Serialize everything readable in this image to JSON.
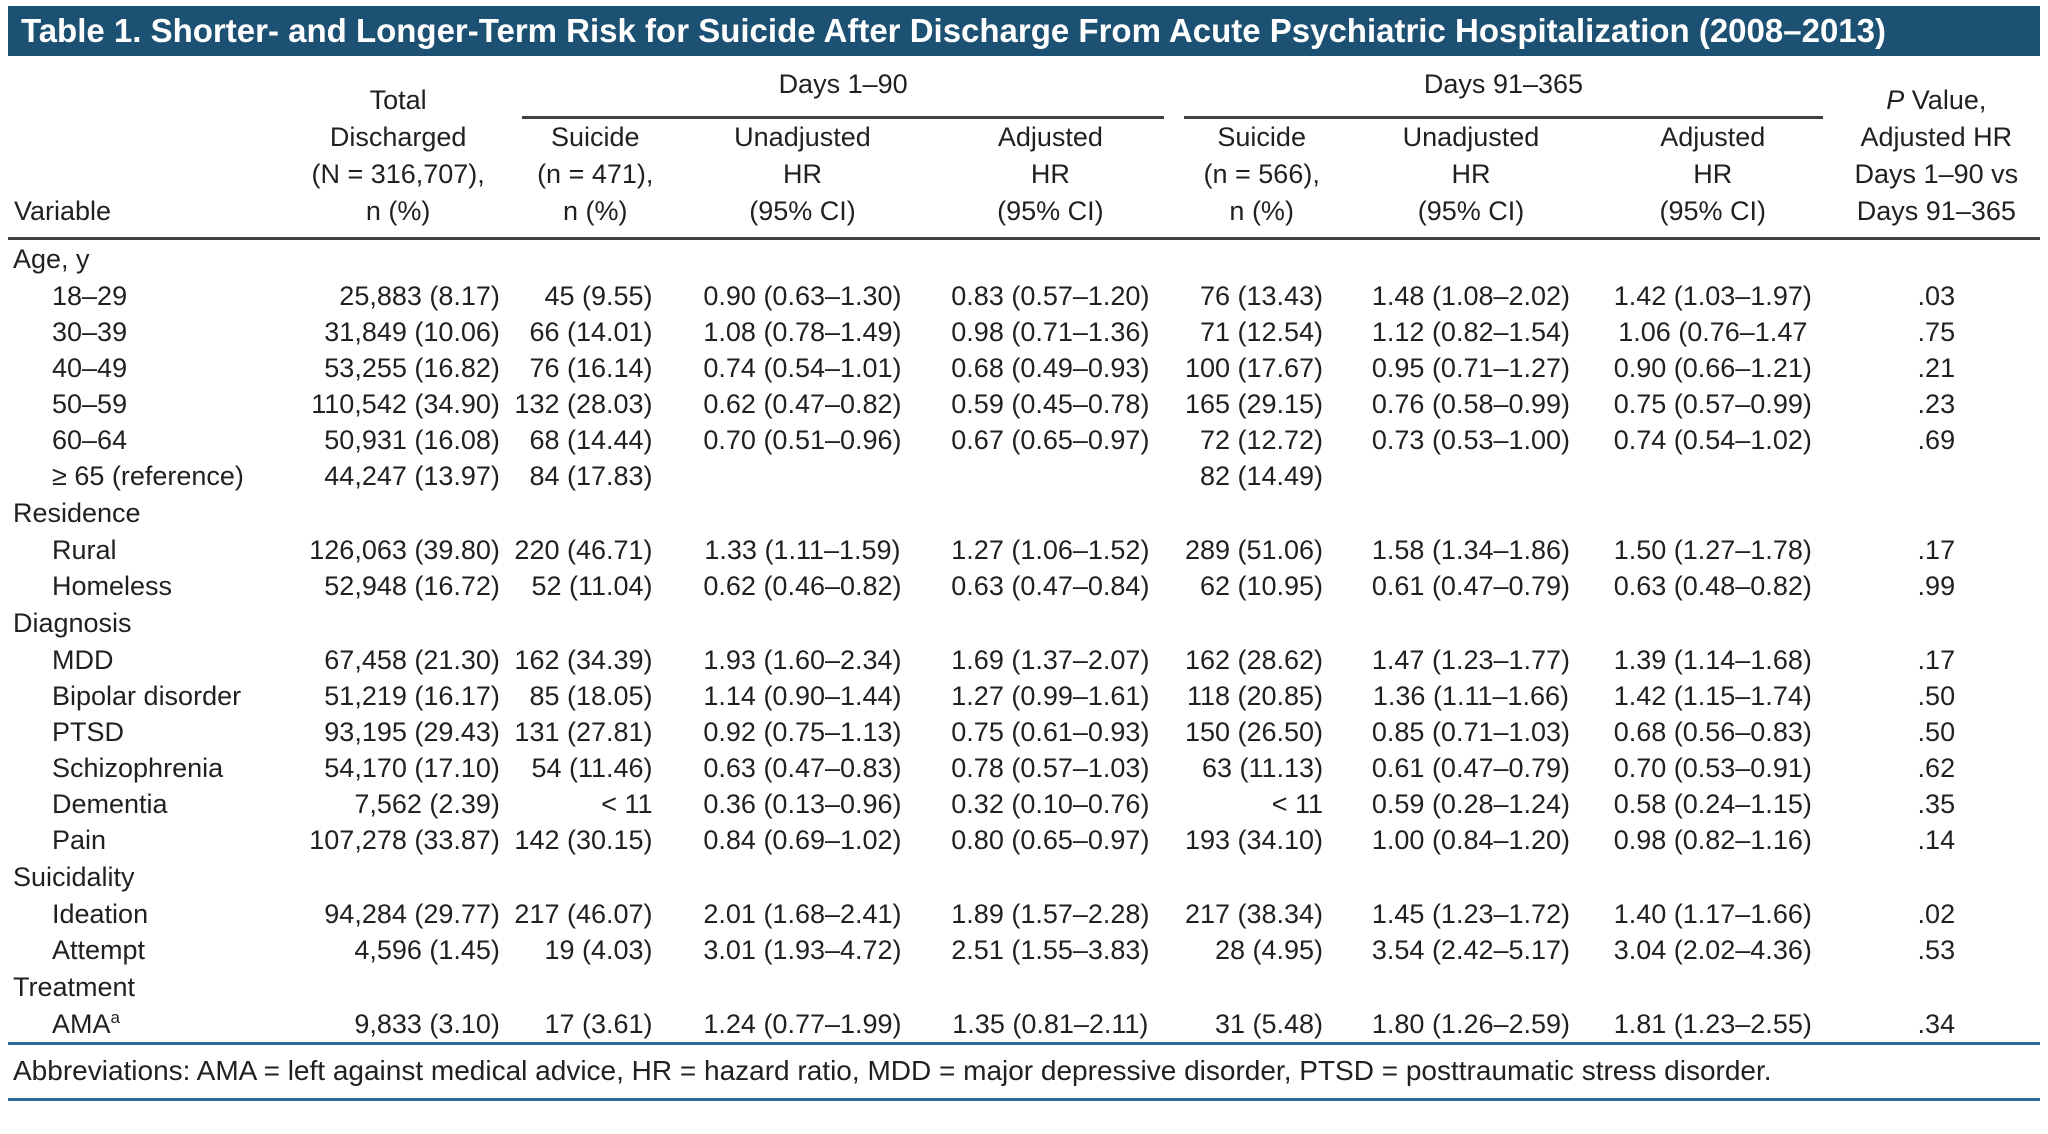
{
  "colors": {
    "title_bar": "#1c5174",
    "rule_blue": "#2b6a9b",
    "rule_dark": "#414042",
    "text": "#231f20"
  },
  "title": "Table 1. Shorter- and Longer-Term Risk for Suicide After Discharge From Acute Psychiatric Hospitalization (2008–2013)",
  "table": {
    "header": {
      "variable_label": "Variable",
      "total_lines": [
        "Total",
        "Discharged",
        "(N = 316,707),",
        "n (%)"
      ],
      "days_1_90": "Days 1–90",
      "days_91_365": "Days 91–365",
      "suicide_90_lines": [
        "Suicide",
        "(n = 471),",
        "n (%)"
      ],
      "suicide_365_lines": [
        "Suicide",
        "(n = 566),",
        "n (%)"
      ],
      "unadjusted_lines": [
        "Unadjusted",
        "HR",
        "(95% CI)"
      ],
      "adjusted_lines": [
        "Adjusted",
        "HR",
        "(95% CI)"
      ],
      "p_value": {
        "italic": "P",
        "first_rest": " Value,",
        "rest_lines": [
          "Adjusted HR",
          "Days 1–90 vs",
          "Days 91–365"
        ]
      }
    },
    "sections": [
      {
        "label": "Age, y",
        "rows": [
          {
            "label": "18–29",
            "total": "25,883 (8.17)",
            "s90": "45 (9.55)",
            "uhr90": "0.90 (0.63–1.30)",
            "ahr90": "0.83 (0.57–1.20)",
            "s365": "76 (13.43)",
            "uhr365": "1.48 (1.08–2.02)",
            "ahr365": "1.42 (1.03–1.97)",
            "p": ".03"
          },
          {
            "label": "30–39",
            "total": "31,849 (10.06)",
            "s90": "66 (14.01)",
            "uhr90": "1.08 (0.78–1.49)",
            "ahr90": "0.98 (0.71–1.36)",
            "s365": "71 (12.54)",
            "uhr365": "1.12 (0.82–1.54)",
            "ahr365": "1.06 (0.76–1.47",
            "p": ".75"
          },
          {
            "label": "40–49",
            "total": "53,255 (16.82)",
            "s90": "76 (16.14)",
            "uhr90": "0.74 (0.54–1.01)",
            "ahr90": "0.68 (0.49–0.93)",
            "s365": "100 (17.67)",
            "uhr365": "0.95 (0.71–1.27)",
            "ahr365": "0.90 (0.66–1.21)",
            "p": ".21"
          },
          {
            "label": "50–59",
            "total": "110,542 (34.90)",
            "s90": "132 (28.03)",
            "uhr90": "0.62 (0.47–0.82)",
            "ahr90": "0.59 (0.45–0.78)",
            "s365": "165 (29.15)",
            "uhr365": "0.76 (0.58–0.99)",
            "ahr365": "0.75 (0.57–0.99)",
            "p": ".23"
          },
          {
            "label": "60–64",
            "total": "50,931 (16.08)",
            "s90": "68 (14.44)",
            "uhr90": "0.70 (0.51–0.96)",
            "ahr90": "0.67 (0.65–0.97)",
            "s365": "72 (12.72)",
            "uhr365": "0.73 (0.53–1.00)",
            "ahr365": "0.74 (0.54–1.02)",
            "p": ".69"
          },
          {
            "label": "≥ 65 (reference)",
            "total": "44,247 (13.97)",
            "s90": "84 (17.83)",
            "uhr90": "",
            "ahr90": "",
            "s365": "82 (14.49)",
            "uhr365": "",
            "ahr365": "",
            "p": ""
          }
        ]
      },
      {
        "label": "Residence",
        "rows": [
          {
            "label": "Rural",
            "total": "126,063 (39.80)",
            "s90": "220 (46.71)",
            "uhr90": "1.33 (1.11–1.59)",
            "ahr90": "1.27 (1.06–1.52)",
            "s365": "289 (51.06)",
            "uhr365": "1.58 (1.34–1.86)",
            "ahr365": "1.50 (1.27–1.78)",
            "p": ".17"
          },
          {
            "label": "Homeless",
            "total": "52,948 (16.72)",
            "s90": "52 (11.04)",
            "uhr90": "0.62 (0.46–0.82)",
            "ahr90": "0.63 (0.47–0.84)",
            "s365": "62 (10.95)",
            "uhr365": "0.61 (0.47–0.79)",
            "ahr365": "0.63 (0.48–0.82)",
            "p": ".99"
          }
        ]
      },
      {
        "label": "Diagnosis",
        "rows": [
          {
            "label": "MDD",
            "total": "67,458 (21.30)",
            "s90": "162 (34.39)",
            "uhr90": "1.93 (1.60–2.34)",
            "ahr90": "1.69 (1.37–2.07)",
            "s365": "162 (28.62)",
            "uhr365": "1.47 (1.23–1.77)",
            "ahr365": "1.39 (1.14–1.68)",
            "p": ".17"
          },
          {
            "label": "Bipolar disorder",
            "total": "51,219 (16.17)",
            "s90": "85 (18.05)",
            "uhr90": "1.14 (0.90–1.44)",
            "ahr90": "1.27 (0.99–1.61)",
            "s365": "118 (20.85)",
            "uhr365": "1.36 (1.11–1.66)",
            "ahr365": "1.42 (1.15–1.74)",
            "p": ".50"
          },
          {
            "label": "PTSD",
            "total": "93,195 (29.43)",
            "s90": "131 (27.81)",
            "uhr90": "0.92 (0.75–1.13)",
            "ahr90": "0.75 (0.61–0.93)",
            "s365": "150 (26.50)",
            "uhr365": "0.85 (0.71–1.03)",
            "ahr365": "0.68 (0.56–0.83)",
            "p": ".50"
          },
          {
            "label": "Schizophrenia",
            "total": "54,170 (17.10)",
            "s90": "54 (11.46)",
            "uhr90": "0.63 (0.47–0.83)",
            "ahr90": "0.78 (0.57–1.03)",
            "s365": "63 (11.13)",
            "uhr365": "0.61 (0.47–0.79)",
            "ahr365": "0.70 (0.53–0.91)",
            "p": ".62"
          },
          {
            "label": "Dementia",
            "total": "7,562 (2.39)",
            "s90": "< 11",
            "uhr90": "0.36 (0.13–0.96)",
            "ahr90": "0.32 (0.10–0.76)",
            "s365": "< 11",
            "uhr365": "0.59 (0.28–1.24)",
            "ahr365": "0.58 (0.24–1.15)",
            "p": ".35"
          },
          {
            "label": "Pain",
            "total": "107,278 (33.87)",
            "s90": "142 (30.15)",
            "uhr90": "0.84 (0.69–1.02)",
            "ahr90": "0.80 (0.65–0.97)",
            "s365": "193 (34.10)",
            "uhr365": "1.00 (0.84–1.20)",
            "ahr365": "0.98 (0.82–1.16)",
            "p": ".14"
          }
        ]
      },
      {
        "label": "Suicidality",
        "rows": [
          {
            "label": "Ideation",
            "total": "94,284 (29.77)",
            "s90": "217 (46.07)",
            "uhr90": "2.01 (1.68–2.41)",
            "ahr90": "1.89 (1.57–2.28)",
            "s365": "217 (38.34)",
            "uhr365": "1.45 (1.23–1.72)",
            "ahr365": "1.40 (1.17–1.66)",
            "p": ".02"
          },
          {
            "label": "Attempt",
            "total": "4,596 (1.45)",
            "s90": "19 (4.03)",
            "uhr90": "3.01 (1.93–4.72)",
            "ahr90": "2.51 (1.55–3.83)",
            "s365": "28 (4.95)",
            "uhr365": "3.54 (2.42–5.17)",
            "ahr365": "3.04 (2.02–4.36)",
            "p": ".53"
          }
        ]
      },
      {
        "label": "Treatment",
        "rows": [
          {
            "label": "AMA",
            "sup": "a",
            "total": "9,833 (3.10)",
            "s90": "17 (3.61)",
            "uhr90": "1.24 (0.77–1.99)",
            "ahr90": "1.35 (0.81–2.11)",
            "s365": "31 (5.48)",
            "uhr365": "1.80 (1.26–2.59)",
            "ahr365": "1.81 (1.23–2.55)",
            "p": ".34"
          }
        ]
      }
    ],
    "footnote": "Abbreviations: AMA = left against medical advice, HR = hazard ratio, MDD = major depressive disorder, PTSD = posttraumatic stress disorder."
  }
}
